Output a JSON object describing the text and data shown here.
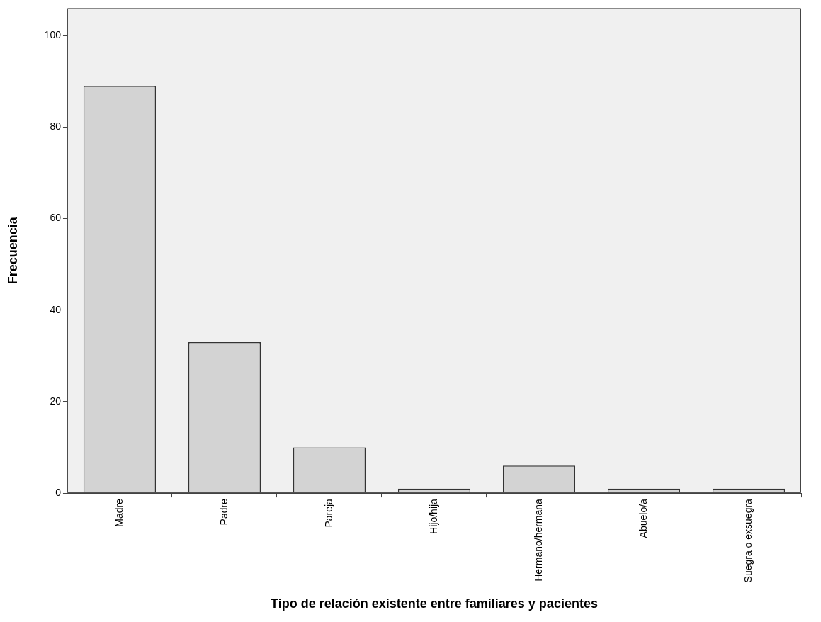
{
  "chart_data": {
    "type": "bar",
    "xlabel": "Tipo de relación existente entre familiares y pacientes",
    "ylabel": "Frecuencia",
    "categories": [
      "Madre",
      "Padre",
      "Pareja",
      "Hijo/hija",
      "Hermano/hermana",
      "Abuelo/a",
      "Suegra o exsuegra"
    ],
    "values": [
      89,
      33,
      10,
      1,
      6,
      1,
      1
    ],
    "color": "#d3d3d3",
    "ylim": [
      0,
      106
    ],
    "yticks": [
      0,
      20,
      40,
      60,
      80,
      100
    ],
    "grid": false,
    "legend": false
  }
}
